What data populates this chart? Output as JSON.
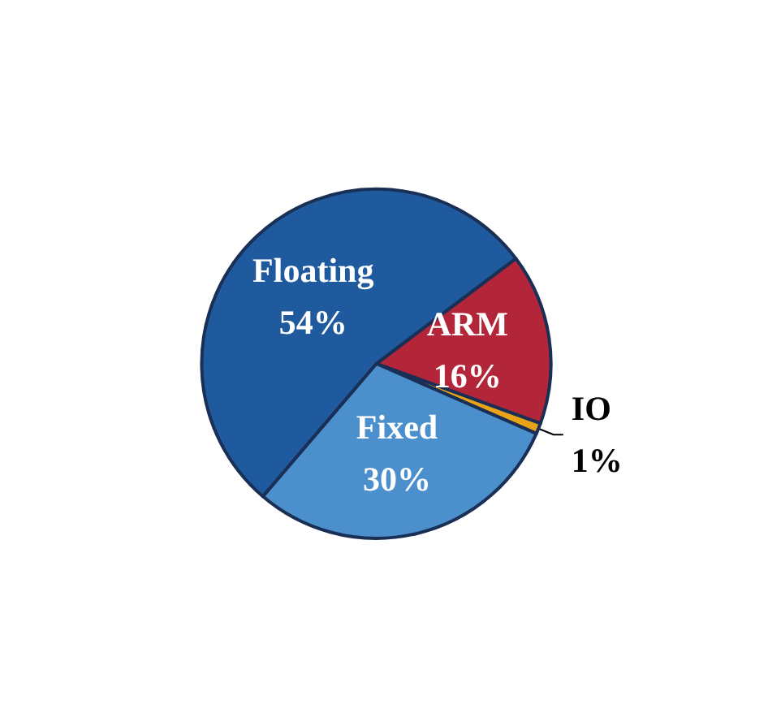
{
  "chart_data": {
    "type": "pie",
    "categories": [
      "ARM",
      "IO",
      "Fixed",
      "Floating"
    ],
    "values": [
      16,
      1,
      30,
      54
    ],
    "value_labels": [
      "16%",
      "1%",
      "30%",
      "54%"
    ],
    "colors": [
      "#b3263a",
      "#e8a317",
      "#4b8fcc",
      "#1f5a9e"
    ],
    "legend": false
  }
}
